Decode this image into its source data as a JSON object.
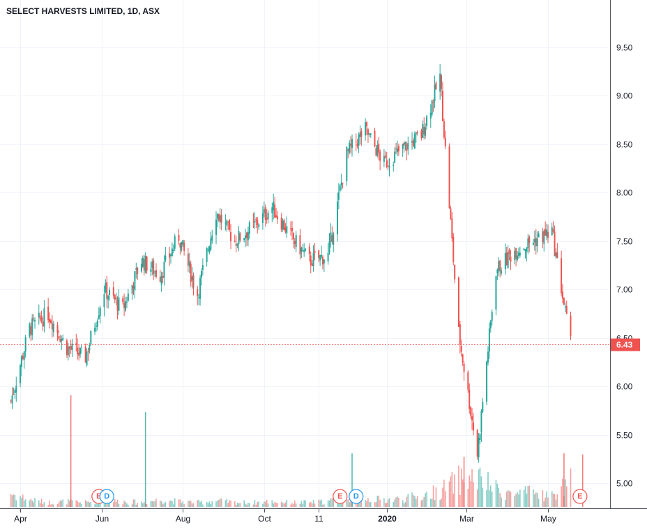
{
  "chart_data": {
    "type": "candlestick",
    "title": "SELECT HARVESTS LIMITED, 1D, ASX",
    "ylim": [
      4.8,
      9.9
    ],
    "y_ticks": [
      "9.50",
      "9.00",
      "8.50",
      "8.00",
      "7.50",
      "7.00",
      "6.50",
      "6.00",
      "5.50",
      "5.00"
    ],
    "y_tick_values": [
      9.5,
      9.0,
      8.5,
      8.0,
      7.5,
      7.0,
      6.5,
      6.0,
      5.5,
      5.0
    ],
    "x_ticks": [
      {
        "label": "Apr",
        "date": "2019-04-01",
        "bold": false
      },
      {
        "label": "Jun",
        "date": "2019-06-01",
        "bold": false
      },
      {
        "label": "Aug",
        "date": "2019-08-01",
        "bold": false
      },
      {
        "label": "Oct",
        "date": "2019-10-01",
        "bold": false
      },
      {
        "label": "11",
        "date": "2019-11-11",
        "bold": false
      },
      {
        "label": "2020",
        "date": "2020-01-01",
        "bold": true
      },
      {
        "label": "Mar",
        "date": "2020-03-01",
        "bold": false
      },
      {
        "label": "May",
        "date": "2020-05-01",
        "bold": false
      }
    ],
    "last_price": {
      "value": 6.43,
      "label": "6.43"
    },
    "grid": true,
    "up_color": "#26a69a",
    "down_color": "#ef5350",
    "x": [
      "2019-03-25",
      "2019-04-08",
      "2019-04-22",
      "2019-05-06",
      "2019-05-20",
      "2019-06-03",
      "2019-06-17",
      "2019-07-01",
      "2019-07-15",
      "2019-07-29",
      "2019-08-12",
      "2019-08-26",
      "2019-09-09",
      "2019-09-23",
      "2019-10-07",
      "2019-10-21",
      "2019-11-04",
      "2019-11-18",
      "2019-12-02",
      "2019-12-16",
      "2019-12-30",
      "2020-01-13",
      "2020-01-27",
      "2020-02-10",
      "2020-02-24",
      "2020-03-09",
      "2020-03-23",
      "2020-04-06",
      "2020-04-20",
      "2020-05-04",
      "2020-05-18"
    ],
    "close": [
      5.85,
      6.6,
      6.75,
      6.4,
      6.3,
      7.0,
      6.8,
      7.3,
      7.15,
      7.55,
      6.95,
      7.8,
      7.5,
      7.65,
      7.85,
      7.55,
      7.3,
      7.35,
      8.4,
      8.65,
      8.3,
      8.45,
      8.6,
      9.2,
      6.55,
      5.3,
      7.2,
      7.4,
      7.5,
      7.6,
      6.43
    ],
    "volume_relative": [
      0.15,
      0.08,
      0.05,
      0.06,
      0.05,
      0.07,
      0.06,
      0.05,
      0.08,
      0.06,
      0.05,
      0.07,
      0.05,
      0.05,
      0.06,
      0.05,
      0.05,
      0.06,
      0.12,
      0.09,
      0.08,
      0.09,
      0.12,
      0.18,
      0.3,
      0.32,
      0.2,
      0.14,
      0.16,
      0.12,
      0.3
    ],
    "volume_spikes": [
      {
        "date": "2019-05-09",
        "relative": 1.0,
        "color": "#ef5350"
      },
      {
        "date": "2019-07-04",
        "relative": 0.85,
        "color": "#26a69a"
      },
      {
        "date": "2019-12-06",
        "relative": 0.48,
        "color": "#26a69a"
      },
      {
        "date": "2020-02-28",
        "relative": 0.45,
        "color": "#ef5350"
      },
      {
        "date": "2020-05-13",
        "relative": 0.48,
        "color": "#ef5350"
      },
      {
        "date": "2020-05-27",
        "relative": 0.47,
        "color": "#ef5350"
      }
    ],
    "event_markers": [
      {
        "label": "E",
        "date": "2019-05-30",
        "color": "#ef5350"
      },
      {
        "label": "D",
        "date": "2019-06-05",
        "color": "#2196f3"
      },
      {
        "label": "E",
        "date": "2019-11-27",
        "color": "#ef5350"
      },
      {
        "label": "D",
        "date": "2019-12-09",
        "color": "#2196f3"
      },
      {
        "label": "E",
        "date": "2020-05-25",
        "color": "#ef5350"
      }
    ]
  }
}
